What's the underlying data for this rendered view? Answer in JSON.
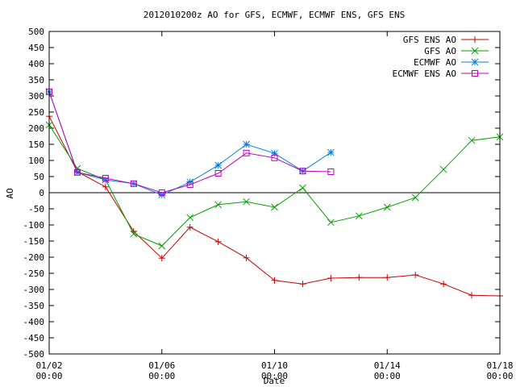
{
  "chart_data": {
    "type": "line",
    "title": "2012010200z AO for GFS, ECMWF, ECMWF ENS, GFS ENS",
    "xlabel": "Date",
    "ylabel": "AO",
    "xlim": [
      0,
      16
    ],
    "ylim": [
      -500,
      500
    ],
    "y_ticks": [
      -500,
      -450,
      -400,
      -350,
      -300,
      -250,
      -200,
      -150,
      -100,
      -50,
      0,
      50,
      100,
      150,
      200,
      250,
      300,
      350,
      400,
      450,
      500
    ],
    "x_ticks": [
      {
        "pos": 0,
        "line1": "01/02",
        "line2": "00:00"
      },
      {
        "pos": 4,
        "line1": "01/06",
        "line2": "00:00"
      },
      {
        "pos": 8,
        "line1": "01/10",
        "line2": "00:00"
      },
      {
        "pos": 12,
        "line1": "01/14",
        "line2": "00:00"
      },
      {
        "pos": 16,
        "line1": "01/18",
        "line2": "00:00"
      }
    ],
    "zero_line": true,
    "legend_position": "top-right",
    "series": [
      {
        "name": "GFS ENS AO",
        "color": "#cc0000",
        "marker": "plus",
        "x": [
          0,
          1,
          2,
          3,
          4,
          5,
          6,
          7,
          8,
          9,
          10,
          11,
          12,
          13,
          14,
          15,
          16
        ],
        "y": [
          237,
          65,
          18,
          -120,
          -203,
          -107,
          -152,
          -202,
          -272,
          -283,
          -265,
          -263,
          -263,
          -255,
          -283,
          -318,
          -320
        ]
      },
      {
        "name": "GFS AO",
        "color": "#00a000",
        "marker": "cross",
        "x": [
          0,
          1,
          2,
          3,
          4,
          5,
          6,
          7,
          8,
          9,
          10,
          11,
          12,
          13,
          14,
          15,
          16
        ],
        "y": [
          210,
          75,
          40,
          -128,
          -165,
          -77,
          -37,
          -28,
          -45,
          15,
          -92,
          -72,
          -45,
          -15,
          72,
          162,
          173
        ]
      },
      {
        "name": "ECMWF AO",
        "color": "#0080e0",
        "marker": "star",
        "x": [
          0,
          1,
          2,
          3,
          4,
          5,
          6,
          7,
          8,
          9,
          10
        ],
        "y": [
          313,
          63,
          40,
          28,
          -7,
          33,
          85,
          150,
          122,
          67,
          125
        ]
      },
      {
        "name": "ECMWF ENS AO",
        "color": "#c000c0",
        "marker": "square",
        "x": [
          0,
          1,
          2,
          3,
          4,
          5,
          6,
          7,
          8,
          9,
          10
        ],
        "y": [
          313,
          63,
          45,
          28,
          0,
          25,
          60,
          123,
          108,
          67,
          65
        ]
      }
    ]
  }
}
